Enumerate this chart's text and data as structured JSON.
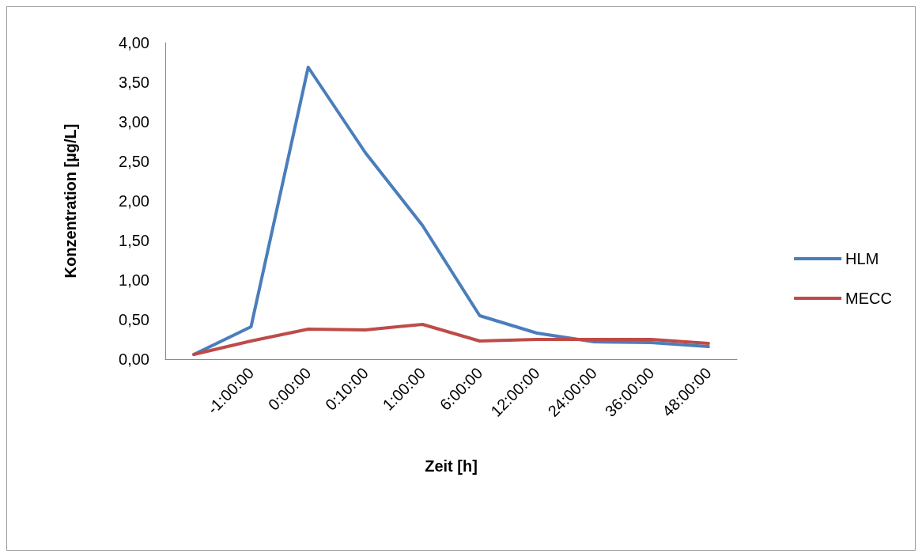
{
  "chart_data": {
    "type": "line",
    "xlabel": "Zeit [h]",
    "ylabel": "Konzentration [µg/L]",
    "categories": [
      null,
      "-1:00:00",
      "0:00:00",
      "0:10:00",
      "1:00:00",
      "6:00:00",
      "12:00:00",
      "24:00:00",
      "36:00:00",
      "48:00:00"
    ],
    "series": [
      {
        "name": "HLM",
        "color": "#4a7ebb",
        "values": [
          0.06,
          0.41,
          3.69,
          2.61,
          1.69,
          0.55,
          0.33,
          0.22,
          0.21,
          0.16
        ]
      },
      {
        "name": "MECC",
        "color": "#be4b48",
        "values": [
          0.06,
          0.23,
          0.38,
          0.37,
          0.44,
          0.23,
          0.25,
          0.25,
          0.25,
          0.2
        ]
      }
    ],
    "ylim": [
      0,
      4
    ],
    "yticks": [
      {
        "value": 0,
        "label": "0,00"
      },
      {
        "value": 0.5,
        "label": "0,50"
      },
      {
        "value": 1,
        "label": "1,00"
      },
      {
        "value": 1.5,
        "label": "1,50"
      },
      {
        "value": 2,
        "label": "2,00"
      },
      {
        "value": 2.5,
        "label": "2,50"
      },
      {
        "value": 3,
        "label": "3,00"
      },
      {
        "value": 3.5,
        "label": "3,50"
      },
      {
        "value": 4,
        "label": "4,00"
      }
    ],
    "grid": false,
    "legend": "right",
    "marker": "none"
  }
}
